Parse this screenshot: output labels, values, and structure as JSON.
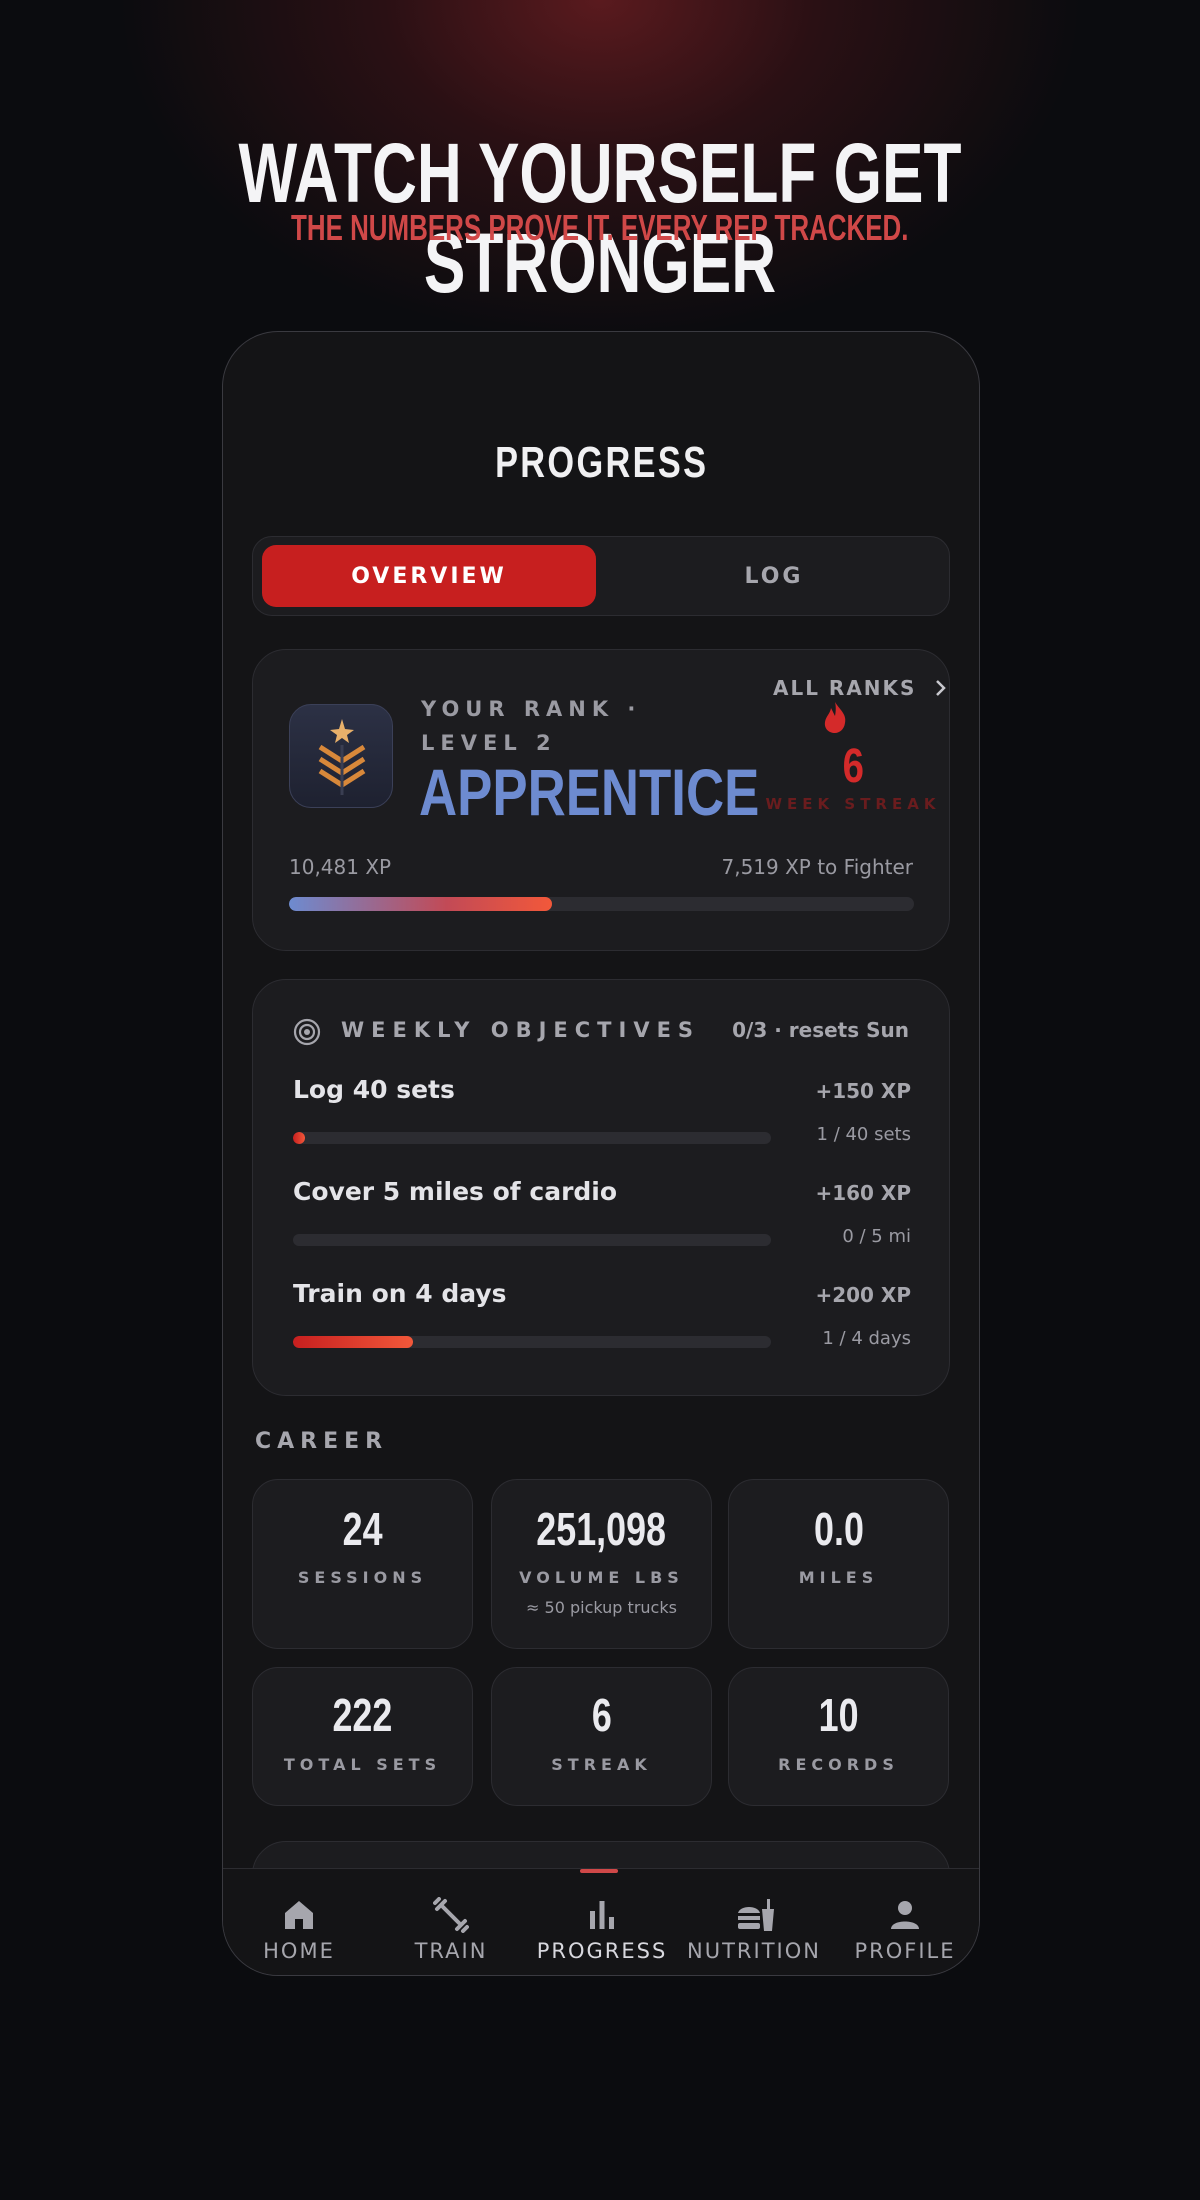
{
  "hero": {
    "title": "WATCH YOURSELF GET STRONGER",
    "subtitle": "THE NUMBERS PROVE IT. EVERY REP TRACKED."
  },
  "screen": {
    "title": "PROGRESS"
  },
  "tabs": [
    "OVERVIEW",
    "LOG"
  ],
  "rank": {
    "eyebrow": "YOUR RANK · LEVEL 2",
    "name": "APPRENTICE",
    "all_ranks": "ALL RANKS",
    "streak_value": "6",
    "streak_label": "WEEK STREAK",
    "xp": "10,481 XP",
    "xp_to_next": "7,519 XP to Fighter"
  },
  "objectives": {
    "title": "WEEKLY OBJECTIVES",
    "status": "0/3 · resets Sun",
    "items": [
      {
        "label": "Log 40 sets",
        "reward": "+150 XP",
        "progress": "1 / 40 sets"
      },
      {
        "label": "Cover 5 miles of cardio",
        "reward": "+160 XP",
        "progress": "0 / 5 mi"
      },
      {
        "label": "Train on 4 days",
        "reward": "+200 XP",
        "progress": "1 / 4 days"
      }
    ]
  },
  "career": {
    "title": "CAREER",
    "stats": [
      {
        "value": "24",
        "label": "SESSIONS"
      },
      {
        "value": "251,098",
        "label": "VOLUME LBS",
        "note": "≈ 50 pickup trucks"
      },
      {
        "value": "0.0",
        "label": "MILES"
      },
      {
        "value": "222",
        "label": "TOTAL SETS"
      },
      {
        "value": "6",
        "label": "STREAK"
      },
      {
        "value": "10",
        "label": "RECORDS"
      }
    ]
  },
  "nav": [
    "HOME",
    "TRAIN",
    "PROGRESS",
    "NUTRITION",
    "PROFILE"
  ]
}
